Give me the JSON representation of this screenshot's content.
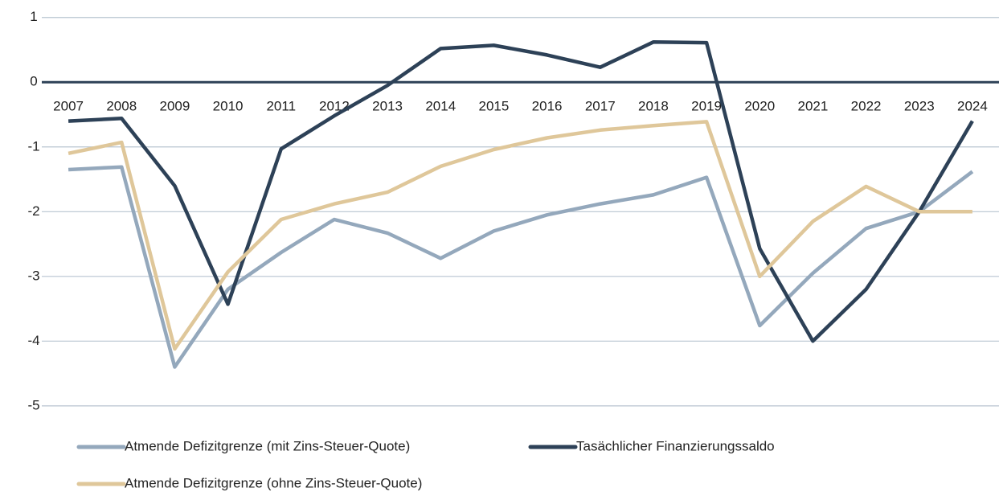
{
  "chart_data": {
    "type": "line",
    "categories": [
      "2007",
      "2008",
      "2009",
      "2010",
      "2011",
      "2012",
      "2013",
      "2014",
      "2015",
      "2016",
      "2017",
      "2018",
      "2019",
      "2020",
      "2021",
      "2022",
      "2023",
      "2024"
    ],
    "series": [
      {
        "name": "Atmende Defizitgrenze (mit Zins-Steuer-Quote)",
        "color": "#94a8bc",
        "values": [
          -1.35,
          -1.31,
          -4.4,
          -3.2,
          -2.63,
          -2.12,
          -2.33,
          -2.72,
          -2.3,
          -2.05,
          -1.88,
          -1.74,
          -1.47,
          -3.76,
          -2.95,
          -2.26,
          -2.0,
          -1.38
        ]
      },
      {
        "name": "Tasächlicher Finanzierungssaldo",
        "color": "#2d4157",
        "values": [
          -0.6,
          -0.56,
          -1.6,
          -3.43,
          -1.03,
          -0.52,
          -0.05,
          0.52,
          0.57,
          0.42,
          0.23,
          0.62,
          0.61,
          -2.57,
          -4.0,
          -3.2,
          -2.0,
          -0.6
        ]
      },
      {
        "name": "Atmende Defizitgrenze (ohne Zins-Steuer-Quote)",
        "color": "#dfc79a",
        "values": [
          -1.1,
          -0.93,
          -4.12,
          -2.93,
          -2.12,
          -1.88,
          -1.7,
          -1.3,
          -1.04,
          -0.86,
          -0.74,
          -0.67,
          -0.61,
          -3.0,
          -2.15,
          -1.61,
          -2.0,
          -2.0
        ]
      }
    ],
    "ylim": [
      -5.3,
      1.27
    ],
    "yticks": [
      1,
      0,
      -1,
      -2,
      -3,
      -4,
      -5
    ],
    "grid": true
  }
}
